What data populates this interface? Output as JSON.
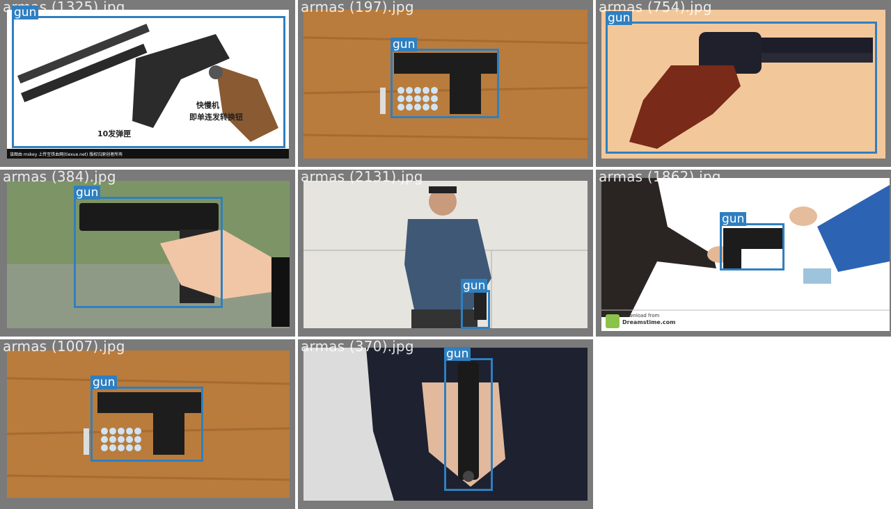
{
  "label": "gun",
  "colors": {
    "tile_bg": "#7a7a7a",
    "box": "#2f7fc0"
  },
  "tiles": [
    {
      "filename": "armas (1325).jpg",
      "caption_1": "快慢机",
      "caption_2": "即单连发转换钮",
      "caption_3": "10发弹匣",
      "footer": "该图由 mskey 上传至铁血网(tiexue.net) 版权归原创者所有"
    },
    {
      "filename": "armas (197).jpg"
    },
    {
      "filename": "armas (754).jpg"
    },
    {
      "filename": "armas (384).jpg"
    },
    {
      "filename": "armas (2131).jpg"
    },
    {
      "filename": "armas (1862).jpg",
      "download_1": "Download from",
      "download_2": "Dreamstime.com"
    },
    {
      "filename": "armas (1007).jpg"
    },
    {
      "filename": "armas (370).jpg"
    }
  ]
}
